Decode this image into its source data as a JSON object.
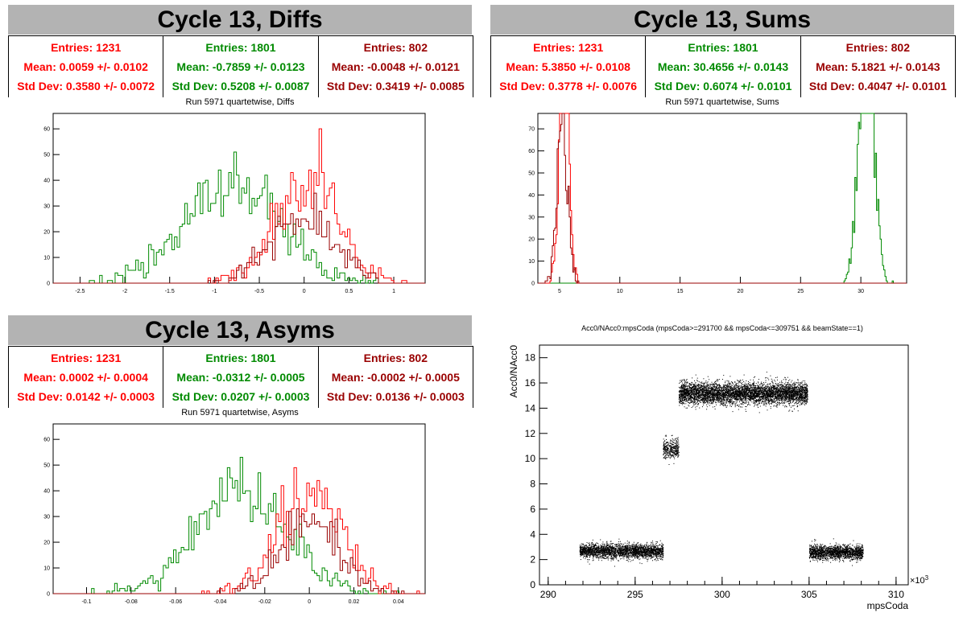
{
  "colors": {
    "red": "#ff0000",
    "green": "#008a00",
    "darkred": "#990000",
    "black": "#000000"
  },
  "panels": {
    "diffs": {
      "title": "Cycle 13, Diffs",
      "subtitle": "Run 5971 quartetwise, Diffs",
      "stats": [
        {
          "entries": "Entries: 1231",
          "mean": "Mean: 0.0059 +/- 0.0102",
          "std": "Std Dev: 0.3580 +/- 0.0072",
          "color": "#ff0000"
        },
        {
          "entries": "Entries: 1801",
          "mean": "Mean: -0.7859 +/- 0.0123",
          "std": "Std Dev: 0.5208 +/- 0.0087",
          "color": "#008a00"
        },
        {
          "entries": "Entries: 802",
          "mean": "Mean: -0.0048 +/- 0.0121",
          "std": "Std Dev: 0.3419 +/- 0.0085",
          "color": "#990000"
        }
      ]
    },
    "sums": {
      "title": "Cycle 13, Sums",
      "subtitle": "Run 5971 quartetwise, Sums",
      "stats": [
        {
          "entries": "Entries: 1231",
          "mean": "Mean: 5.3850 +/- 0.0108",
          "std": "Std Dev: 0.3778 +/- 0.0076",
          "color": "#ff0000"
        },
        {
          "entries": "Entries: 1801",
          "mean": "Mean: 30.4656 +/- 0.0143",
          "std": "Std Dev: 0.6074 +/- 0.0101",
          "color": "#008a00"
        },
        {
          "entries": "Entries: 802",
          "mean": "Mean: 5.1821 +/- 0.0143",
          "std": "Std Dev: 0.4047 +/- 0.0101",
          "color": "#990000"
        }
      ]
    },
    "asyms": {
      "title": "Cycle 13, Asyms",
      "subtitle": "Run 5971 quartetwise, Asyms",
      "stats": [
        {
          "entries": "Entries: 1231",
          "mean": "Mean: 0.0002 +/- 0.0004",
          "std": "Std Dev: 0.0142 +/- 0.0003",
          "color": "#ff0000"
        },
        {
          "entries": "Entries: 1801",
          "mean": "Mean: -0.0312 +/- 0.0005",
          "std": "Std Dev: 0.0207 +/- 0.0003",
          "color": "#008a00"
        },
        {
          "entries": "Entries: 802",
          "mean": "Mean: -0.0002 +/- 0.0005",
          "std": "Std Dev: 0.0136 +/- 0.0003",
          "color": "#990000"
        }
      ]
    },
    "scatter": {
      "title": "Acc0/NAcc0:mpsCoda (mpsCoda>=291700 && mpsCoda<=309751 && beamState==1)"
    }
  },
  "chart_data": [
    {
      "type": "line",
      "subtitle": "Run 5971 quartetwise, Diffs",
      "xlim": [
        -2.8,
        1.35
      ],
      "ylim": [
        0,
        66
      ],
      "xticks": [
        -2.5,
        -2,
        -1.5,
        -1,
        -0.5,
        0,
        0.5,
        1
      ],
      "xtick_labels": [
        "-2.5",
        "-2",
        "-1.5",
        "-1",
        "-0.5",
        "0",
        "0.5",
        "1"
      ],
      "yticks": [
        0,
        10,
        20,
        30,
        40,
        50,
        60
      ],
      "ytick_labels": [
        "0",
        "10",
        "20",
        "30",
        "40",
        "50",
        "60"
      ],
      "series": [
        {
          "color": "#008a00",
          "mean": -0.7859,
          "std": 0.5208,
          "entries": 1801,
          "binwidth": 0.0288,
          "seed": 11
        },
        {
          "color": "#ff0000",
          "mean": 0.0059,
          "std": 0.358,
          "entries": 1231,
          "binwidth": 0.0288,
          "seed": 23
        },
        {
          "color": "#990000",
          "mean": -0.0048,
          "std": 0.3419,
          "entries": 802,
          "binwidth": 0.0288,
          "seed": 37
        }
      ]
    },
    {
      "type": "line",
      "subtitle": "Run 5971 quartetwise, Sums",
      "xlim": [
        3.2,
        33.8
      ],
      "ylim": [
        0,
        77
      ],
      "xticks": [
        5,
        10,
        15,
        20,
        25,
        30
      ],
      "xtick_labels": [
        "5",
        "10",
        "15",
        "20",
        "25",
        "30"
      ],
      "yticks": [
        0,
        10,
        20,
        30,
        40,
        50,
        60,
        70
      ],
      "ytick_labels": [
        "0",
        "10",
        "20",
        "30",
        "40",
        "50",
        "60",
        "70"
      ],
      "series": [
        {
          "color": "#008a00",
          "mean": 30.4656,
          "std": 0.6074,
          "entries": 1801,
          "binwidth": 0.1,
          "seed": 41
        },
        {
          "color": "#ff0000",
          "mean": 5.385,
          "std": 0.3778,
          "entries": 1231,
          "binwidth": 0.1,
          "seed": 53
        },
        {
          "color": "#990000",
          "mean": 5.1821,
          "std": 0.4047,
          "entries": 802,
          "binwidth": 0.1,
          "seed": 67
        }
      ]
    },
    {
      "type": "line",
      "subtitle": "Run 5971 quartetwise, Asyms",
      "xlim": [
        -0.115,
        0.052
      ],
      "ylim": [
        0,
        66
      ],
      "xticks": [
        -0.1,
        -0.08,
        -0.06,
        -0.04,
        -0.02,
        0,
        0.02,
        0.04
      ],
      "xtick_labels": [
        "-0.1",
        "-0.08",
        "-0.06",
        "-0.04",
        "-0.02",
        "0",
        "0.02",
        "0.04"
      ],
      "yticks": [
        0,
        10,
        20,
        30,
        40,
        50,
        60
      ],
      "ytick_labels": [
        "0",
        "10",
        "20",
        "30",
        "40",
        "50",
        "60"
      ],
      "series": [
        {
          "color": "#008a00",
          "mean": -0.0312,
          "std": 0.0207,
          "entries": 1801,
          "binwidth": 0.00115,
          "seed": 71
        },
        {
          "color": "#ff0000",
          "mean": 0.0002,
          "std": 0.0142,
          "entries": 1231,
          "binwidth": 0.00115,
          "seed": 83
        },
        {
          "color": "#990000",
          "mean": -0.0002,
          "std": 0.0136,
          "entries": 802,
          "binwidth": 0.00115,
          "seed": 97
        }
      ]
    },
    {
      "type": "scatter",
      "title": "Acc0/NAcc0:mpsCoda (mpsCoda>=291700 && mpsCoda<=309751 && beamState==1)",
      "xlabel": "mpsCoda",
      "ylabel": "Acc0/NAcc0",
      "x_exponent": "×10",
      "x_exponent_power": "3",
      "xlim": [
        289.5,
        310.7
      ],
      "ylim": [
        0,
        19
      ],
      "xticks": [
        290,
        295,
        300,
        305,
        310
      ],
      "xtick_labels": [
        "290",
        "295",
        "300",
        "305",
        "310"
      ],
      "yticks": [
        0,
        2,
        4,
        6,
        8,
        10,
        12,
        14,
        16,
        18
      ],
      "ytick_labels": [
        "0",
        "2",
        "4",
        "6",
        "8",
        "10",
        "12",
        "14",
        "16",
        "18"
      ],
      "clusters": [
        {
          "x": [
            291.8,
            296.6
          ],
          "y_mean": 2.7,
          "y_spread": 0.35,
          "n": 2600
        },
        {
          "x": [
            296.6,
            297.5
          ],
          "y_mean": 10.8,
          "y_spread": 0.45,
          "n": 380
        },
        {
          "x": [
            297.5,
            304.9
          ],
          "y_mean": 15.2,
          "y_spread": 0.55,
          "n": 5200
        },
        {
          "x": [
            305.0,
            308.1
          ],
          "y_mean": 2.6,
          "y_spread": 0.35,
          "n": 1800
        }
      ]
    }
  ]
}
